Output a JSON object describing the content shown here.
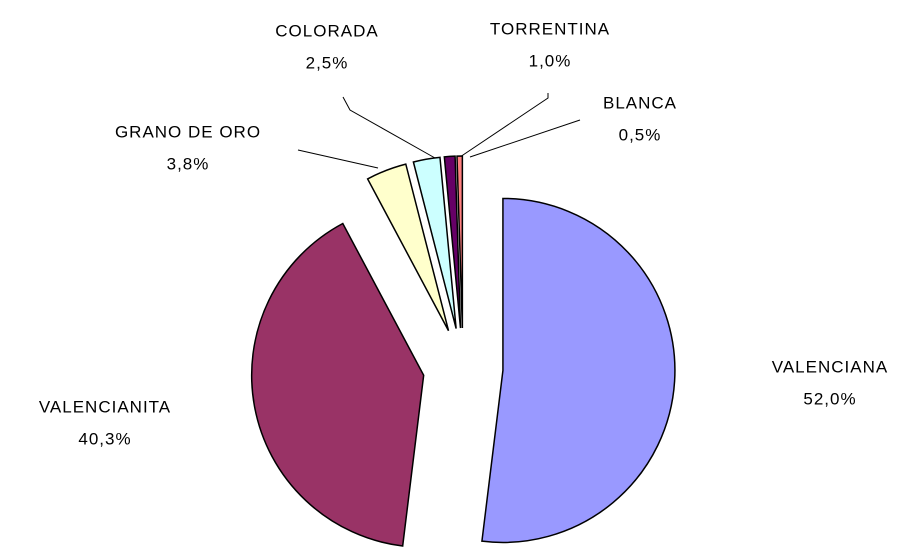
{
  "chart_data": {
    "type": "pie",
    "categories": [
      "VALENCIANA",
      "VALENCIANITA",
      "GRANO DE ORO",
      "COLORADA",
      "TORRENTINA",
      "BLANCA"
    ],
    "values": [
      52.0,
      40.3,
      3.8,
      2.5,
      1.0,
      0.5
    ],
    "value_labels": [
      "52,0%",
      "40,3%",
      "3,8%",
      "2,5%",
      "1,0%",
      "0,5%"
    ],
    "colors": [
      "#9999ff",
      "#993366",
      "#ffffcc",
      "#ccffff",
      "#660066",
      "#ff8080"
    ]
  }
}
